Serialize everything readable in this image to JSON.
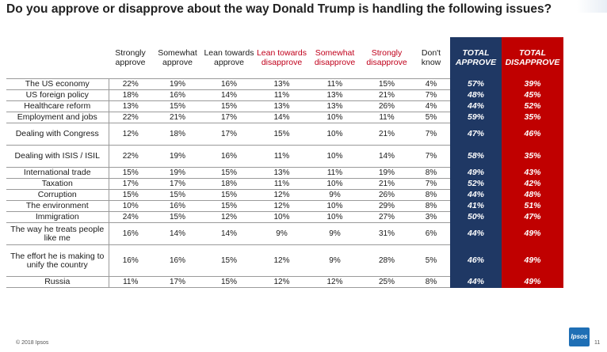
{
  "title": "Do you approve or disapprove about the way Donald Trump is handling the following issues?",
  "columns": [
    {
      "label": "Strongly approve",
      "style": "normal"
    },
    {
      "label": "Somewhat approve",
      "style": "normal"
    },
    {
      "label": "Lean towards approve",
      "style": "normal"
    },
    {
      "label": "Lean towards disapprove",
      "style": "red"
    },
    {
      "label": "Somewhat disapprove",
      "style": "red"
    },
    {
      "label": "Strongly disapprove",
      "style": "red"
    },
    {
      "label": "Don't know",
      "style": "normal"
    },
    {
      "label": "TOTAL APPROVE",
      "style": "totA"
    },
    {
      "label": "TOTAL DISAPPROVE",
      "style": "totD"
    }
  ],
  "rows": [
    {
      "issue": "The US economy",
      "values": [
        "22%",
        "19%",
        "16%",
        "13%",
        "11%",
        "15%",
        "4%",
        "57%",
        "39%"
      ]
    },
    {
      "issue": "US foreign policy",
      "values": [
        "18%",
        "16%",
        "14%",
        "11%",
        "13%",
        "21%",
        "7%",
        "48%",
        "45%"
      ]
    },
    {
      "issue": "Healthcare reform",
      "values": [
        "13%",
        "15%",
        "15%",
        "13%",
        "13%",
        "26%",
        "4%",
        "44%",
        "52%"
      ]
    },
    {
      "issue": "Employment and jobs",
      "values": [
        "22%",
        "21%",
        "17%",
        "14%",
        "10%",
        "11%",
        "5%",
        "59%",
        "35%"
      ]
    },
    {
      "issue": "Dealing with Congress",
      "values": [
        "12%",
        "18%",
        "17%",
        "15%",
        "10%",
        "21%",
        "7%",
        "47%",
        "46%"
      ]
    },
    {
      "issue": "Dealing with ISIS / ISIL",
      "values": [
        "22%",
        "19%",
        "16%",
        "11%",
        "10%",
        "14%",
        "7%",
        "58%",
        "35%"
      ]
    },
    {
      "issue": "International trade",
      "values": [
        "15%",
        "19%",
        "15%",
        "13%",
        "11%",
        "19%",
        "8%",
        "49%",
        "43%"
      ]
    },
    {
      "issue": "Taxation",
      "values": [
        "17%",
        "17%",
        "18%",
        "11%",
        "10%",
        "21%",
        "7%",
        "52%",
        "42%"
      ]
    },
    {
      "issue": "Corruption",
      "values": [
        "15%",
        "15%",
        "15%",
        "12%",
        "9%",
        "26%",
        "8%",
        "44%",
        "48%"
      ]
    },
    {
      "issue": "The environment",
      "values": [
        "10%",
        "16%",
        "15%",
        "12%",
        "10%",
        "29%",
        "8%",
        "41%",
        "51%"
      ]
    },
    {
      "issue": "Immigration",
      "values": [
        "24%",
        "15%",
        "12%",
        "10%",
        "10%",
        "27%",
        "3%",
        "50%",
        "47%"
      ]
    },
    {
      "issue": "The way he treats people like me",
      "values": [
        "16%",
        "14%",
        "14%",
        "9%",
        "9%",
        "31%",
        "6%",
        "44%",
        "49%"
      ]
    },
    {
      "issue": "The effort he is making to unify the country",
      "values": [
        "16%",
        "16%",
        "15%",
        "12%",
        "9%",
        "28%",
        "5%",
        "46%",
        "49%"
      ]
    },
    {
      "issue": "Russia",
      "values": [
        "11%",
        "17%",
        "15%",
        "12%",
        "12%",
        "25%",
        "8%",
        "44%",
        "49%"
      ]
    }
  ],
  "footer": {
    "copyright": "© 2018 Ipsos",
    "page_number": "11",
    "logo_text": "Ipsos"
  }
}
